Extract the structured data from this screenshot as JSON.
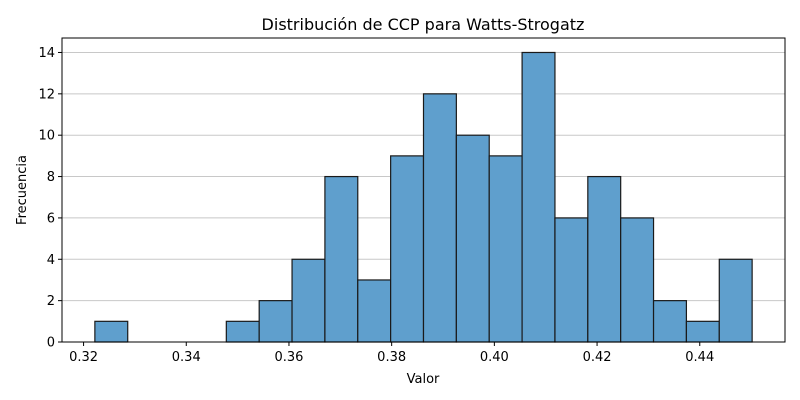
{
  "chart_data": {
    "type": "bar",
    "title": "Distribución de CCP para Watts-Strogatz",
    "xlabel": "Valor",
    "ylabel": "Frecuencia",
    "bin_edges": [
      0.3222,
      0.3286,
      0.335,
      0.3414,
      0.3478,
      0.3542,
      0.3606,
      0.367,
      0.3734,
      0.3798,
      0.3862,
      0.3926,
      0.399,
      0.4054,
      0.4118,
      0.4182,
      0.4246,
      0.431,
      0.4374,
      0.4438,
      0.4502
    ],
    "values": [
      1,
      0,
      0,
      0,
      1,
      2,
      4,
      8,
      3,
      9,
      12,
      10,
      9,
      14,
      6,
      8,
      6,
      2,
      1,
      4
    ],
    "xlim": [
      0.3158,
      0.4566
    ],
    "ylim": [
      0,
      14.7
    ],
    "xticks": [
      0.32,
      0.34,
      0.36,
      0.38,
      0.4,
      0.42,
      0.44
    ],
    "xtick_labels": [
      "0.32",
      "0.34",
      "0.36",
      "0.38",
      "0.40",
      "0.42",
      "0.44"
    ],
    "yticks": [
      0,
      2,
      4,
      6,
      8,
      10,
      12,
      14
    ],
    "ytick_labels": [
      "0",
      "2",
      "4",
      "6",
      "8",
      "10",
      "12",
      "14"
    ],
    "grid": "y",
    "colors": {
      "bar_fill": "#5f9fcd",
      "bar_edge": "#1a1a1a",
      "grid": "#c8c8c8"
    }
  }
}
